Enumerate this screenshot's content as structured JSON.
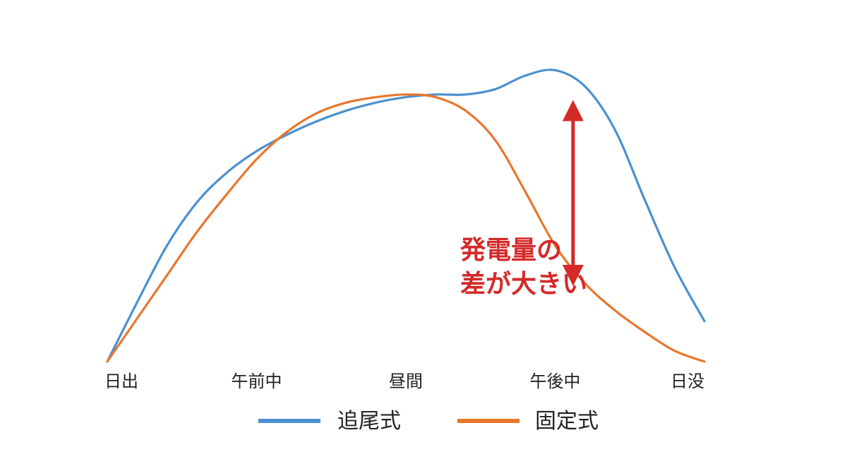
{
  "chart_data": {
    "type": "line",
    "title": "",
    "xlabel": "",
    "ylabel": "",
    "categories": [
      "日出",
      "午前中",
      "昼間",
      "午後中",
      "日没"
    ],
    "x": [
      0,
      0.05,
      0.1,
      0.15,
      0.2,
      0.25,
      0.3,
      0.35,
      0.4,
      0.45,
      0.5,
      0.55,
      0.6,
      0.65,
      0.7,
      0.75,
      0.8,
      0.85,
      0.9,
      0.95,
      1
    ],
    "xlim": [
      0,
      1
    ],
    "ylim": [
      0,
      1
    ],
    "grid": false,
    "legend_position": "bottom",
    "series": [
      {
        "name": "追尾式",
        "color": "#4a90d0",
        "values": [
          0,
          0.22,
          0.43,
          0.59,
          0.7,
          0.78,
          0.84,
          0.89,
          0.93,
          0.96,
          0.98,
          0.99,
          0.99,
          1.01,
          1.06,
          1.08,
          1.02,
          0.86,
          0.6,
          0.35,
          0.15
        ]
      },
      {
        "name": "固定式",
        "color": "#e8762d",
        "values": [
          0,
          0.16,
          0.32,
          0.48,
          0.62,
          0.75,
          0.85,
          0.92,
          0.96,
          0.98,
          0.99,
          0.98,
          0.93,
          0.82,
          0.63,
          0.43,
          0.29,
          0.19,
          0.11,
          0.04,
          0
        ]
      }
    ],
    "annotations": [
      {
        "text": [
          "発電量の",
          "差が大きい"
        ],
        "color": "#d42a2a",
        "arrow_x": 0.78,
        "arrow_from_y": 0.28,
        "arrow_to_y": 0.97
      }
    ]
  }
}
